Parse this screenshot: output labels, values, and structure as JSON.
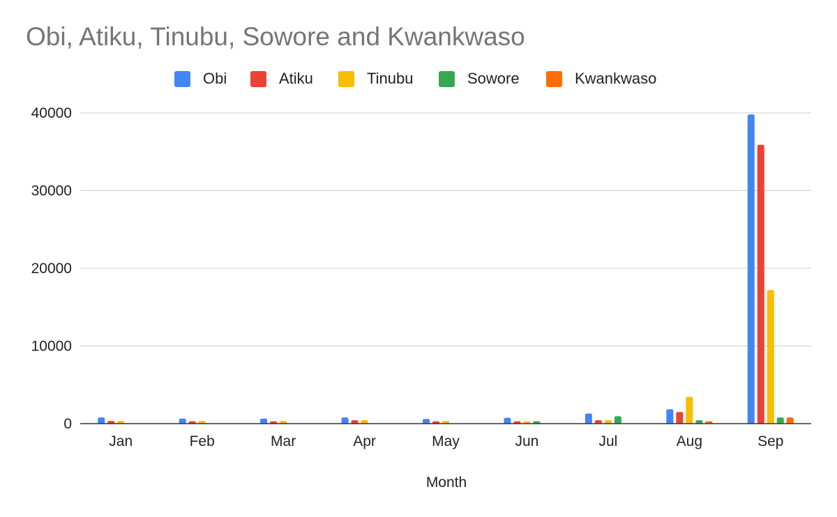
{
  "chart_data": {
    "type": "bar",
    "title": "Obi, Atiku, Tinubu, Sowore and Kwankwaso",
    "xlabel": "Month",
    "ylabel": "",
    "ylim": [
      0,
      40000
    ],
    "yticks": [
      0,
      10000,
      20000,
      30000,
      40000
    ],
    "grid": true,
    "legend_position": "top",
    "categories": [
      "Jan",
      "Feb",
      "Mar",
      "Apr",
      "May",
      "Jun",
      "Jul",
      "Aug",
      "Sep"
    ],
    "series": [
      {
        "name": "Obi",
        "color": "#4285f4",
        "values": [
          800,
          650,
          650,
          800,
          600,
          750,
          1300,
          1850,
          39800
        ]
      },
      {
        "name": "Atiku",
        "color": "#ea4335",
        "values": [
          350,
          300,
          300,
          450,
          300,
          300,
          450,
          1500,
          35900
        ]
      },
      {
        "name": "Tinubu",
        "color": "#fbbc04",
        "values": [
          350,
          350,
          350,
          450,
          350,
          300,
          450,
          3450,
          17200
        ]
      },
      {
        "name": "Sowore",
        "color": "#34a853",
        "values": [
          50,
          50,
          50,
          50,
          50,
          300,
          950,
          450,
          800
        ]
      },
      {
        "name": "Kwankwaso",
        "color": "#ff6d01",
        "values": [
          50,
          50,
          50,
          50,
          50,
          50,
          50,
          300,
          800
        ]
      }
    ]
  }
}
